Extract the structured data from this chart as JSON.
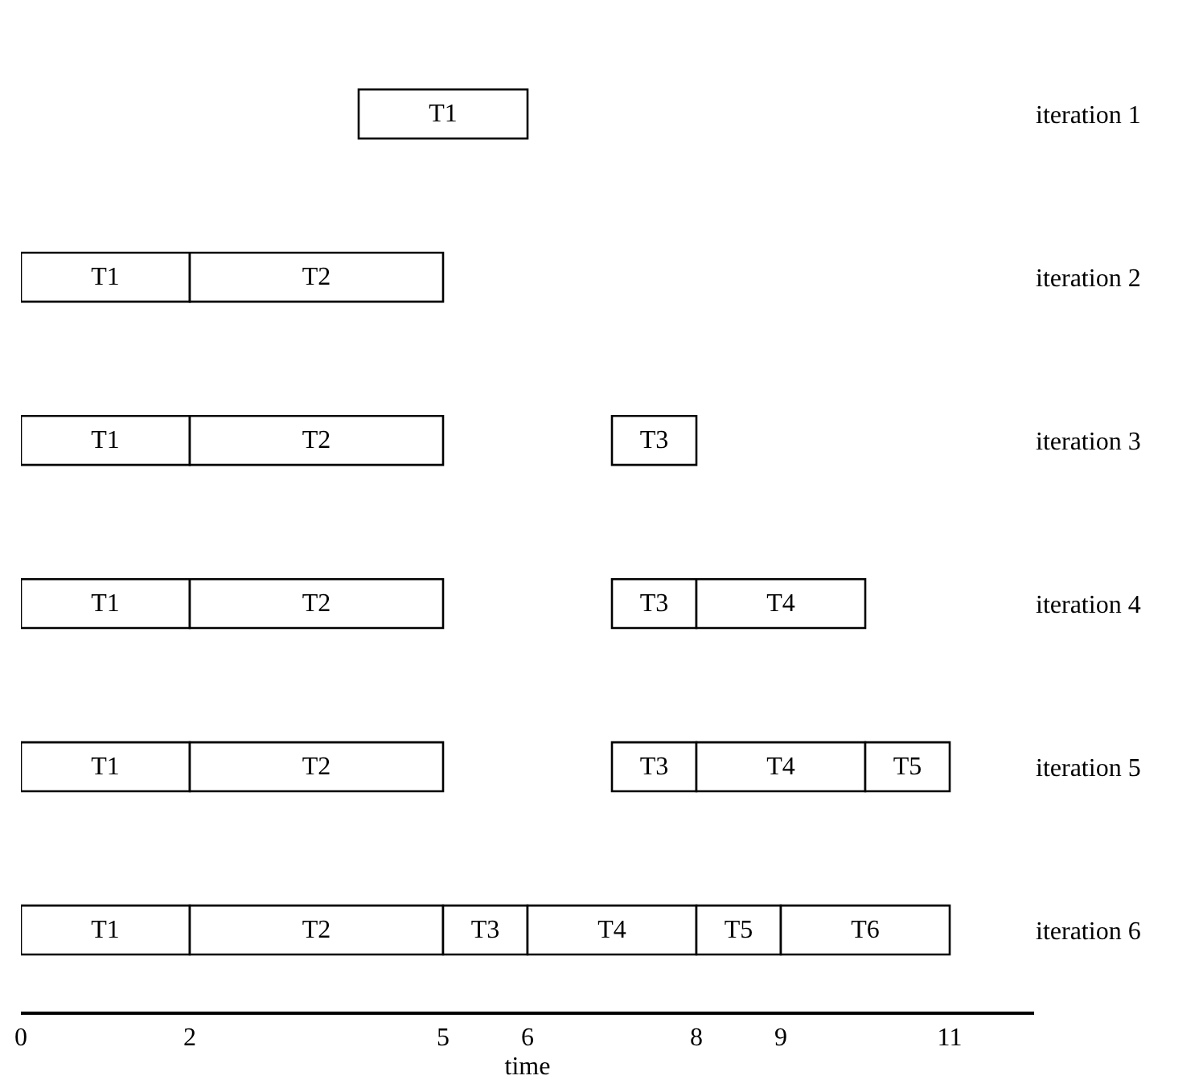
{
  "chart_data": {
    "type": "bar",
    "orientation": "horizontal",
    "stacked": false,
    "categories": [
      "iteration 1",
      "iteration 2",
      "iteration 3",
      "iteration 4",
      "iteration 5",
      "iteration 6"
    ],
    "series": [
      {
        "name": "T1",
        "color": "#ffffff",
        "values": [
          2,
          2,
          2,
          2,
          2,
          2
        ],
        "base": [
          4,
          0,
          0,
          0,
          0,
          0
        ]
      },
      {
        "name": "T2",
        "color": "#ffffff",
        "values": [
          null,
          3,
          3,
          3,
          3,
          3
        ],
        "base": [
          null,
          2,
          2,
          2,
          2,
          2
        ]
      },
      {
        "name": "T3",
        "color": "#ffffff",
        "values": [
          null,
          null,
          1,
          1,
          1,
          1
        ],
        "base": [
          null,
          null,
          7,
          7,
          7,
          5
        ]
      },
      {
        "name": "T4",
        "color": "#ffffff",
        "values": [
          null,
          null,
          null,
          2,
          2,
          2
        ],
        "base": [
          null,
          null,
          null,
          8,
          8,
          6
        ]
      },
      {
        "name": "T5",
        "color": "#ffffff",
        "values": [
          null,
          null,
          null,
          null,
          1,
          1
        ],
        "base": [
          null,
          null,
          null,
          null,
          10,
          8
        ]
      },
      {
        "name": "T6",
        "color": "#ffffff",
        "values": [
          null,
          null,
          null,
          null,
          null,
          2
        ],
        "base": [
          null,
          null,
          null,
          null,
          null,
          9
        ]
      }
    ],
    "xlabel": "time",
    "xlim": [
      0,
      12
    ],
    "xticks": [
      0,
      2,
      5,
      6,
      8,
      9,
      11
    ],
    "legend": false
  }
}
